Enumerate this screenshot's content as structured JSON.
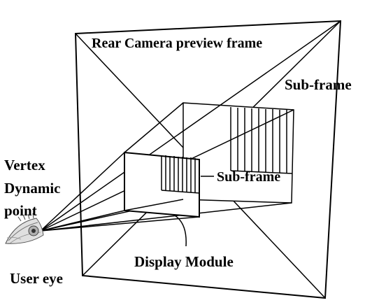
{
  "labels": {
    "rear_frame": "Rear Camera preview frame",
    "sub_frame_top": "Sub-frame",
    "sub_frame_mid": "Sub-frame",
    "vertex_line1": "Vertex",
    "vertex_line2": "Dynamic",
    "vertex_line3": "point",
    "display_module": "Display Module",
    "user_eye": "User eye"
  },
  "colors": {
    "stroke": "#000000",
    "background": "#ffffff"
  },
  "icons": {
    "eye": "eye-icon"
  }
}
